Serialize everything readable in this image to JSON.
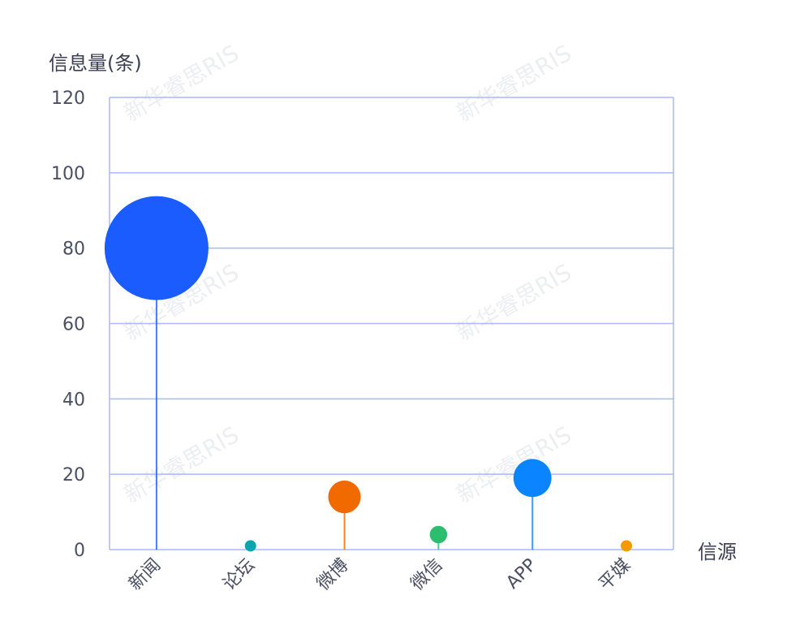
{
  "watermark": "新华睿思RIS",
  "chart_data": {
    "type": "scatter",
    "subtype": "lollipop-bubble",
    "title": "",
    "ylabel": "信息量(条)",
    "xlabel": "信源",
    "ylim": [
      0,
      120
    ],
    "yticks": [
      0,
      20,
      40,
      60,
      80,
      100,
      120
    ],
    "grid": true,
    "categories": [
      "新闻",
      "论坛",
      "微博",
      "微信",
      "APP",
      "平媒"
    ],
    "values": [
      80,
      1,
      14,
      4,
      19,
      1
    ],
    "colors": [
      "#1a5cff",
      "#0aa5b0",
      "#f06a00",
      "#2dbd6e",
      "#0a84ff",
      "#f29a00"
    ],
    "axis_color": "#a9b8ff"
  }
}
